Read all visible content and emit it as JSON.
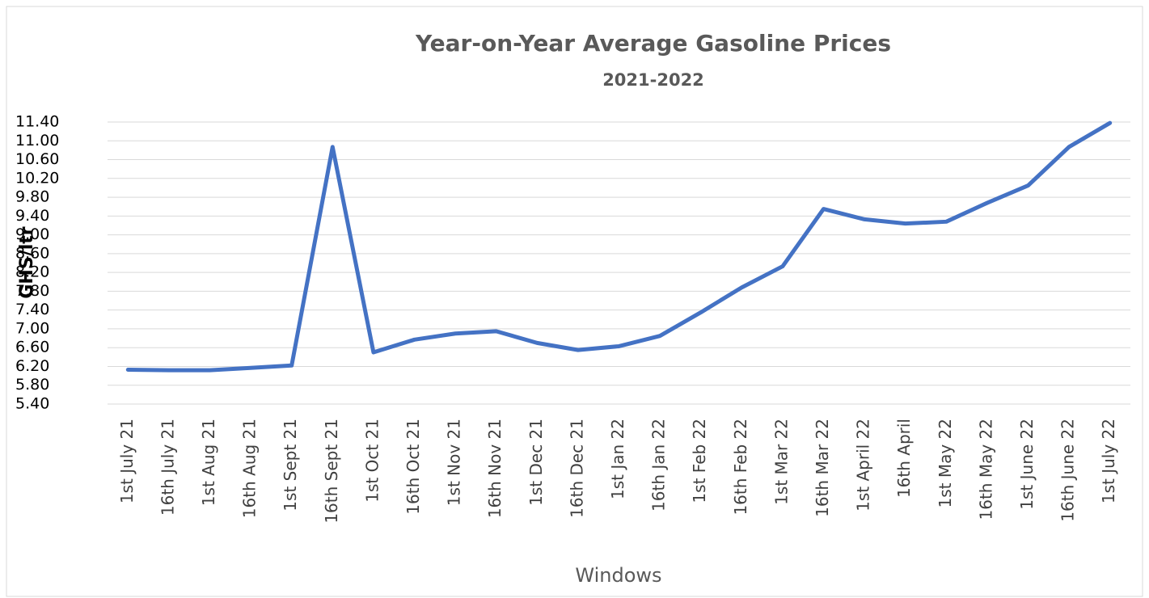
{
  "chart_data": {
    "type": "line",
    "title": "Year-on-Year Average Gasoline Prices",
    "subtitle": "2021-2022",
    "x_label": "Windows",
    "y_label": "GHS/ltr",
    "categories": [
      "1st July 21",
      "16th July 21",
      "1st Aug 21",
      "16th Aug 21",
      "1st Sept 21",
      "16th Sept 21",
      "1st Oct 21",
      "16th Oct 21",
      "1st Nov 21",
      "16th Nov 21",
      "1st  Dec 21",
      "16th Dec 21",
      "1st Jan 22",
      "16th Jan 22",
      "1st Feb 22",
      "16th  Feb 22",
      "1st Mar 22",
      "16th Mar 22",
      "1st April 22",
      "16th April",
      "1st May 22",
      "16th May 22",
      "1st June 22",
      "16th June 22",
      "1st July 22"
    ],
    "series": [
      {
        "name": "Average Gasoline Price",
        "color": "#4472c4",
        "values": [
          6.13,
          6.12,
          6.12,
          6.17,
          6.22,
          10.87,
          6.5,
          6.77,
          6.9,
          6.95,
          6.7,
          6.55,
          6.63,
          6.85,
          7.35,
          7.88,
          8.33,
          9.55,
          9.33,
          9.24,
          9.28,
          9.68,
          10.05,
          10.87,
          11.38
        ]
      }
    ],
    "ylim": [
      5.4,
      11.4
    ],
    "yticks": [
      {
        "value": 5.4,
        "label": "5.40"
      },
      {
        "value": 5.8,
        "label": "5.80"
      },
      {
        "value": 6.2,
        "label": "6.20"
      },
      {
        "value": 6.6,
        "label": "6.60"
      },
      {
        "value": 7,
        "label": "7.00"
      },
      {
        "value": 7.4,
        "label": "7.40"
      },
      {
        "value": 7.8,
        "label": "7.80"
      },
      {
        "value": 8.2,
        "label": "8.20"
      },
      {
        "value": 8.6,
        "label": "8.60"
      },
      {
        "value": 9,
        "label": "9.00"
      },
      {
        "value": 9.4,
        "label": "9.40"
      },
      {
        "value": 9.8,
        "label": "9.80"
      },
      {
        "value": 10.2,
        "label": "10.20"
      },
      {
        "value": 10.6,
        "label": "10.60"
      },
      {
        "value": 11,
        "label": "11.00"
      },
      {
        "value": 11.4,
        "label": "11.40"
      }
    ],
    "grid": true
  }
}
